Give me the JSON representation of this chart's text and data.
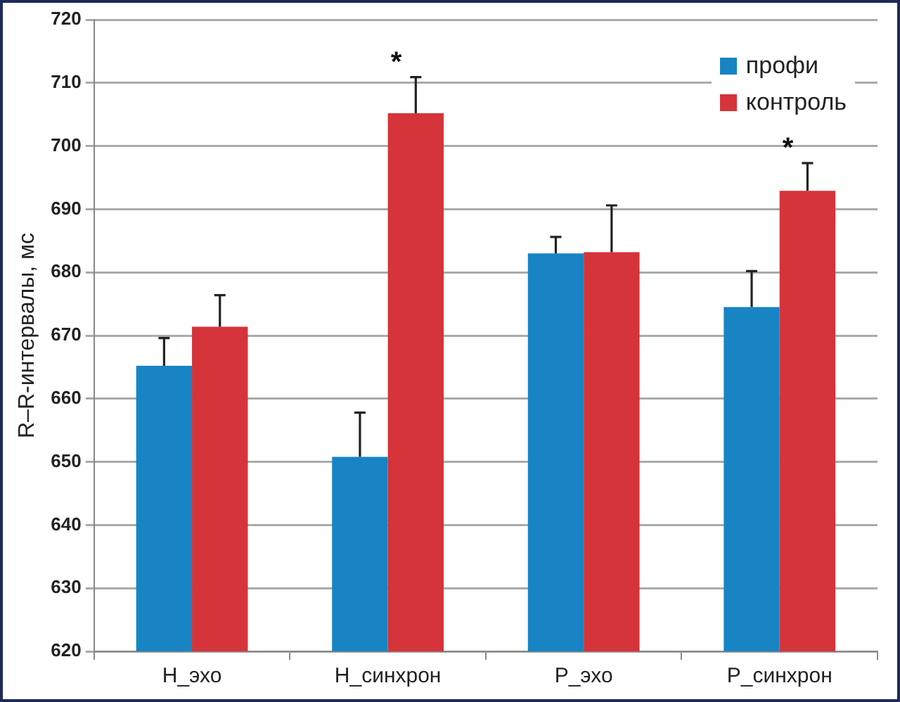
{
  "chart_data": {
    "type": "bar",
    "ylabel": "R–R-интервалы, мс",
    "categories": [
      "Н_эхо",
      "Н_синхрон",
      "Р_эхо",
      "Р_синхрон"
    ],
    "series": [
      {
        "name": "профи",
        "color": "#1884c4",
        "values": [
          665.2,
          650.8,
          683.0,
          674.5
        ],
        "errors": [
          [
            665.2,
            669.6
          ],
          [
            650.8,
            657.8
          ],
          [
            683.0,
            685.6
          ],
          [
            674.5,
            680.2
          ]
        ]
      },
      {
        "name": "контроль",
        "color": "#d4343a",
        "values": [
          671.4,
          705.2,
          683.2,
          692.9
        ],
        "errors": [
          [
            671.4,
            676.4
          ],
          [
            705.2,
            710.9
          ],
          [
            683.2,
            690.6
          ],
          [
            692.9,
            697.3
          ]
        ]
      }
    ],
    "ylim": [
      620,
      720
    ],
    "yticks": [
      620,
      630,
      640,
      650,
      660,
      670,
      680,
      690,
      700,
      710,
      720
    ],
    "grid": "y",
    "legend": "top right",
    "annotations": [
      {
        "text": "*",
        "x": "Н_синхрон",
        "y": 705.2
      },
      {
        "text": "*",
        "x": "Р_синхрон",
        "y": 692.9
      }
    ]
  }
}
